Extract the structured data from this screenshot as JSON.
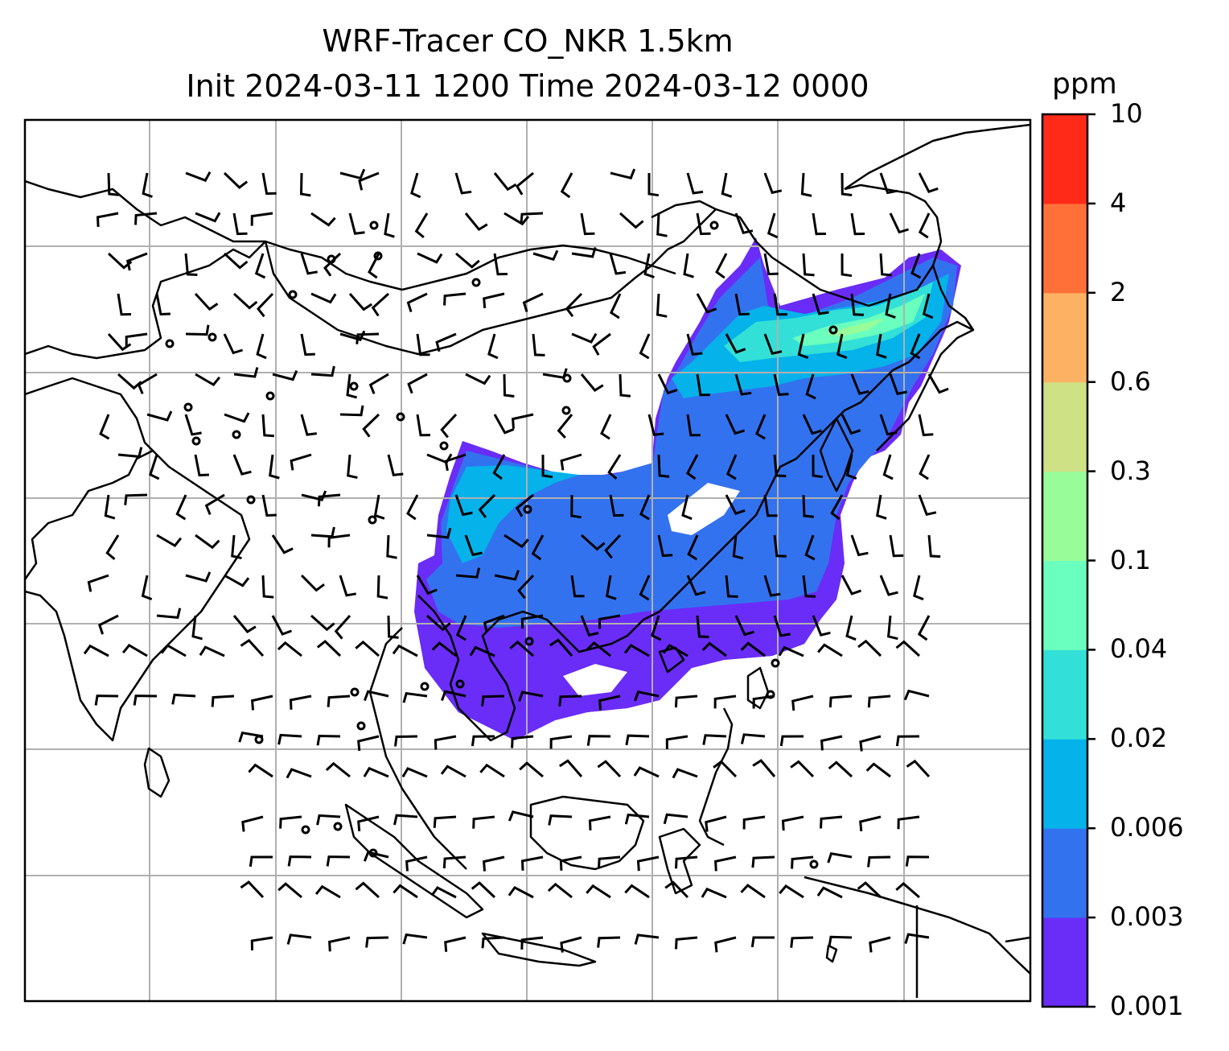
{
  "title": {
    "line1": "WRF-Tracer CO_NKR 1.5km",
    "line2": "Init 2024-03-11 1200 Time 2024-03-12 0000"
  },
  "colorbar": {
    "unit": "ppm",
    "tick_labels": [
      "0.001",
      "0.003",
      "0.006",
      "0.02",
      "0.04",
      "0.1",
      "0.3",
      "0.6",
      "2",
      "4",
      "10"
    ],
    "colors": [
      "#6a2cf7",
      "#3372ef",
      "#05b2ea",
      "#33e0d7",
      "#6affbe",
      "#98fc99",
      "#cfe185",
      "#fdb263",
      "#ff7039",
      "#ff2a18"
    ]
  },
  "map": {
    "background": "#ffffff",
    "gridline_color": "#b0b0b0",
    "coastline_color": "#000000",
    "wind_barbs_color": "#000000"
  }
}
